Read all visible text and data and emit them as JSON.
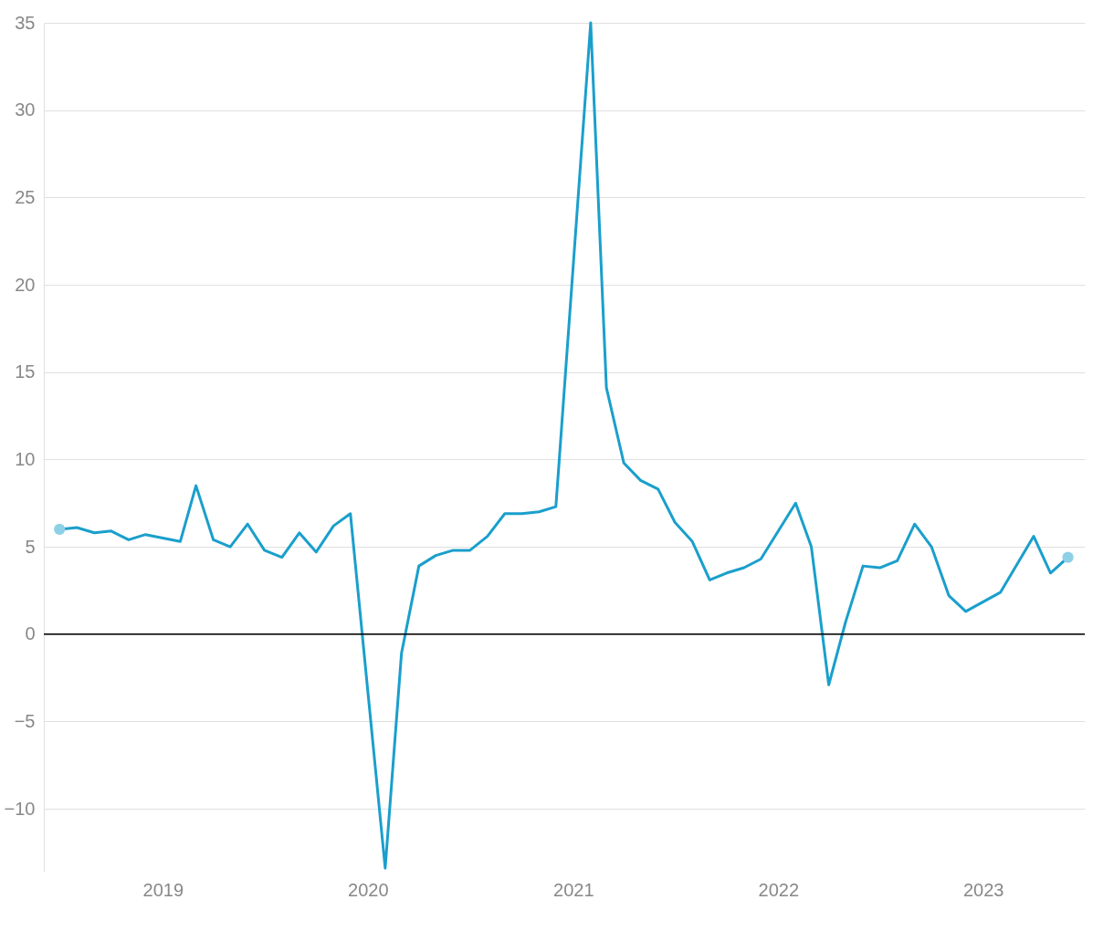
{
  "chart_data": {
    "type": "line",
    "series": [
      {
        "color": "#1a9fcc",
        "x": [
          "2018-07",
          "2018-08",
          "2018-09",
          "2018-10",
          "2018-11",
          "2018-12",
          "2019-02",
          "2019-03",
          "2019-04",
          "2019-05",
          "2019-06",
          "2019-07",
          "2019-08",
          "2019-09",
          "2019-10",
          "2019-11",
          "2019-12",
          "2020-02",
          "2020-03",
          "2020-04",
          "2020-05",
          "2020-06",
          "2020-07",
          "2020-08",
          "2020-09",
          "2020-10",
          "2020-11",
          "2020-12",
          "2021-02",
          "2021-03",
          "2021-04",
          "2021-05",
          "2021-06",
          "2021-07",
          "2021-08",
          "2021-09",
          "2021-10",
          "2021-11",
          "2021-12",
          "2022-02",
          "2022-03",
          "2022-04",
          "2022-05",
          "2022-06",
          "2022-07",
          "2022-08",
          "2022-09",
          "2022-10",
          "2022-11",
          "2022-12",
          "2023-02",
          "2023-04",
          "2023-05",
          "2023-06"
        ],
        "values": [
          6.0,
          6.1,
          5.8,
          5.9,
          5.4,
          5.7,
          5.3,
          8.5,
          5.4,
          5.0,
          6.3,
          4.8,
          4.4,
          5.8,
          4.7,
          6.2,
          6.9,
          -13.4,
          -1.1,
          3.9,
          4.5,
          4.8,
          4.8,
          5.6,
          6.9,
          6.9,
          7.0,
          7.3,
          35.0,
          14.1,
          9.8,
          8.8,
          8.3,
          6.4,
          5.3,
          3.1,
          3.5,
          3.8,
          4.3,
          7.5,
          5.0,
          -2.9,
          0.7,
          3.9,
          3.8,
          4.2,
          6.3,
          5.0,
          2.2,
          1.3,
          2.4,
          5.6,
          3.5,
          4.4
        ]
      },
      {
        "type": "scatter",
        "color": "#8ed0e6",
        "marker": "circle",
        "x": [
          "2018-07",
          "2023-06"
        ],
        "values": [
          6.0,
          4.4
        ]
      }
    ],
    "xlim": [
      "2018-06-03",
      "2023-07-01"
    ],
    "xticks": [
      "2019",
      "2020",
      "2021",
      "2022",
      "2023"
    ],
    "ylim": [
      -13.6,
      35
    ],
    "yticks": [
      {
        "value": -10,
        "label": "−10"
      },
      {
        "value": -5,
        "label": "−5"
      },
      0,
      5,
      10,
      15,
      20,
      25,
      30,
      35
    ],
    "ref_lines": [
      {
        "axis": "y",
        "value": 0,
        "color": "#000000"
      }
    ],
    "grid": "y"
  }
}
